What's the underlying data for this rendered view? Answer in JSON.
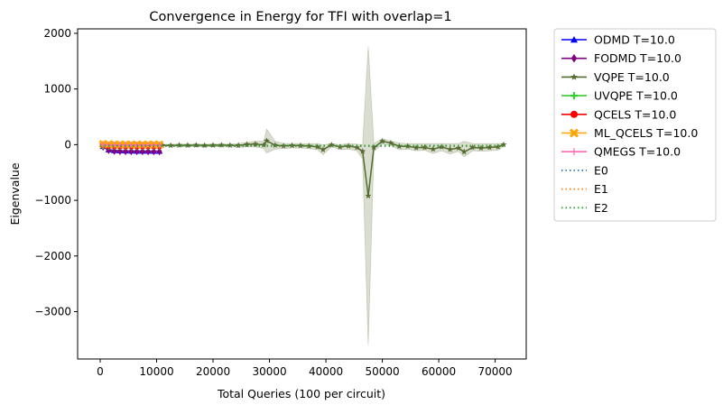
{
  "chart_data": {
    "type": "line",
    "title": "Convergence in Energy for TFI with overlap=1",
    "xlabel": "Total Queries (100 per circuit)",
    "ylabel": "Eigenvalue",
    "xlim": [
      -4000,
      75500
    ],
    "ylim": [
      -3850,
      2080
    ],
    "xticks": [
      0,
      10000,
      20000,
      30000,
      40000,
      50000,
      60000,
      70000
    ],
    "xtick_labels": [
      "0",
      "10000",
      "20000",
      "30000",
      "40000",
      "50000",
      "60000",
      "70000"
    ],
    "yticks": [
      2000,
      1000,
      0,
      -1000,
      -2000,
      -3000
    ],
    "ytick_labels": [
      "2000",
      "1000",
      "0",
      "−1000",
      "−2000",
      "−3000"
    ],
    "grid": false,
    "legend_position": "outside-right",
    "series": [
      {
        "name": "ODMD T=10.0",
        "color": "#0000ff",
        "marker": "triangle",
        "style": "solid",
        "x": [
          500,
          1500,
          2500,
          3500,
          4500,
          5500,
          6500,
          7500,
          8500,
          9500,
          10500
        ],
        "y": [
          -30,
          -90,
          -105,
          -110,
          -112,
          -114,
          -115,
          -116,
          -116,
          -117,
          -117
        ]
      },
      {
        "name": "FODMD T=10.0",
        "color": "#800080",
        "marker": "diamond",
        "style": "solid",
        "x": [
          500,
          1500,
          2500,
          3500,
          4500,
          5500,
          6500,
          7500,
          8500,
          9500,
          10500
        ],
        "y": [
          -40,
          -100,
          -115,
          -118,
          -120,
          -120,
          -121,
          -121,
          -122,
          -122,
          -122
        ]
      },
      {
        "name": "VQPE T=10.0",
        "color": "#556b2f",
        "marker": "star",
        "style": "solid",
        "x": [
          500,
          1000,
          2000,
          3000,
          4000,
          5000,
          6000,
          7000,
          8000,
          9000,
          10000,
          11000,
          12500,
          14000,
          15500,
          17000,
          18500,
          20000,
          21500,
          23000,
          24500,
          26000,
          27500,
          29000,
          29500,
          31000,
          32500,
          34000,
          35500,
          37000,
          38500,
          39500,
          41000,
          42500,
          44000,
          45500,
          46500,
          47500,
          48500,
          50000,
          51500,
          53000,
          54500,
          56000,
          57500,
          59000,
          60500,
          62000,
          63500,
          64500,
          66000,
          67500,
          69000,
          70500,
          71500
        ],
        "y": [
          -5,
          -8,
          -10,
          -9,
          -10,
          -11,
          -10,
          -12,
          -10,
          -11,
          -10,
          -12,
          -15,
          -10,
          -12,
          -8,
          -14,
          -10,
          -8,
          -12,
          -14,
          5,
          10,
          -5,
          70,
          -10,
          -22,
          -15,
          -18,
          -25,
          -40,
          -90,
          -5,
          -40,
          -25,
          -50,
          -120,
          -920,
          -50,
          60,
          30,
          -30,
          -28,
          -55,
          -50,
          -80,
          -40,
          -85,
          -60,
          -130,
          -50,
          -60,
          -50,
          -40,
          0
        ],
        "upper": [
          5,
          5,
          5,
          5,
          5,
          5,
          5,
          5,
          5,
          5,
          5,
          5,
          10,
          10,
          10,
          10,
          10,
          10,
          10,
          10,
          20,
          40,
          60,
          60,
          280,
          60,
          20,
          20,
          20,
          20,
          20,
          0,
          20,
          0,
          20,
          10,
          0,
          1760,
          20,
          110,
          60,
          30,
          20,
          20,
          20,
          20,
          20,
          20,
          20,
          60,
          20,
          20,
          20,
          20,
          20
        ],
        "lower": [
          -15,
          -20,
          -20,
          -20,
          -20,
          -20,
          -20,
          -20,
          -20,
          -20,
          -20,
          -20,
          -40,
          -40,
          -40,
          -40,
          -40,
          -40,
          -40,
          -40,
          -50,
          -40,
          -40,
          -70,
          -150,
          -80,
          -70,
          -60,
          -60,
          -70,
          -90,
          -180,
          -40,
          -90,
          -80,
          -110,
          -260,
          -3600,
          -120,
          10,
          -20,
          -90,
          -80,
          -110,
          -100,
          -160,
          -110,
          -170,
          -120,
          -220,
          -110,
          -120,
          -110,
          -100,
          -30
        ]
      },
      {
        "name": "UVQPE T=10.0",
        "color": "#32cd32",
        "marker": "plus",
        "style": "solid",
        "x": [
          500,
          1500,
          2500,
          3500,
          4500,
          5500,
          6500,
          7500,
          8500,
          9500,
          10500
        ],
        "y": [
          -20,
          -30,
          -35,
          -35,
          -36,
          -36,
          -36,
          -36,
          -36,
          -36,
          -36
        ]
      },
      {
        "name": "QCELS T=10.0",
        "color": "#ff0000",
        "marker": "circle",
        "style": "solid",
        "x": [
          500,
          1500,
          2500,
          3500,
          4500,
          5500,
          6500,
          7500,
          8500,
          9500,
          10500
        ],
        "y": [
          0,
          -20,
          -25,
          -25,
          -26,
          -26,
          -26,
          -26,
          -26,
          -26,
          -26
        ]
      },
      {
        "name": "ML_QCELS T=10.0",
        "color": "#ffa500",
        "marker": "x-filled",
        "style": "solid",
        "x": [
          500,
          1500,
          2500,
          3500,
          4500,
          5500,
          6500,
          7500,
          8500,
          9500,
          10500
        ],
        "y": [
          10,
          5,
          3,
          2,
          2,
          2,
          2,
          2,
          2,
          2,
          2
        ]
      },
      {
        "name": "QMEGS T=10.0",
        "color": "#ff69b4",
        "marker": "plus-thin",
        "style": "solid",
        "x": [
          500,
          1500,
          2500,
          3500,
          4500,
          5500,
          6500,
          7500,
          8500,
          9500,
          10500
        ],
        "y": [
          0,
          -5,
          -8,
          -8,
          -8,
          -8,
          -8,
          -8,
          -8,
          -8,
          -8
        ]
      },
      {
        "name": "E0",
        "color": "#1f77b4",
        "marker": "none",
        "style": "dotted",
        "x": [
          0,
          71500
        ],
        "y": [
          -25,
          -25
        ]
      },
      {
        "name": "E1",
        "color": "#ff7f0e",
        "marker": "none",
        "style": "dotted",
        "x": [
          0,
          71500
        ],
        "y": [
          -21,
          -21
        ]
      },
      {
        "name": "E2",
        "color": "#2ca02c",
        "marker": "none",
        "style": "dotted",
        "x": [
          0,
          71500
        ],
        "y": [
          -17,
          -17
        ]
      }
    ]
  }
}
